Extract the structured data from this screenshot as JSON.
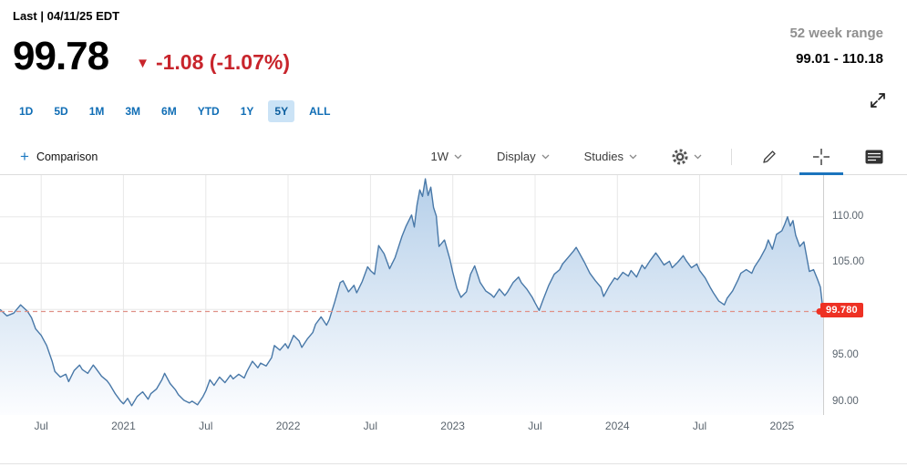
{
  "header": {
    "last_line": "Last | 04/11/25 EDT",
    "price": "99.78",
    "change_arrow": "▼",
    "change_text": "-1.08 (-1.07%)",
    "week_range_label": "52 week range",
    "week_range_value": "99.01 - 110.18"
  },
  "range_tabs": {
    "items": [
      "1D",
      "5D",
      "1M",
      "3M",
      "6M",
      "YTD",
      "1Y",
      "5Y",
      "ALL"
    ],
    "active": "5Y"
  },
  "toolbar": {
    "comparison": {
      "plus": "+",
      "label": "Comparison"
    },
    "dropdowns": [
      {
        "name": "interval",
        "label": "1W"
      },
      {
        "name": "display",
        "label": "Display"
      },
      {
        "name": "studies",
        "label": "Studies"
      }
    ],
    "tools": [
      "settings-gear",
      "draw-pencil",
      "crosshair",
      "events-news"
    ],
    "active_tool": "crosshair"
  },
  "colors": {
    "accent_blue": "#0f6db5",
    "active_tab_bg": "#cbe3f6",
    "change_red": "#c8252c",
    "badge": "#ee3124",
    "line": "#4878a8",
    "area_top": "#b5cfe9",
    "area_bottom": "#fcfdff",
    "dashed_line": "#e09187",
    "gridline": "#e8e8e8"
  },
  "chart_data": {
    "type": "area",
    "x_unit": "months from Apr 2020",
    "x_range": [
      0,
      60
    ],
    "ylim": [
      88.6,
      114.5
    ],
    "gridlines_y": [
      110,
      105,
      100,
      95,
      90
    ],
    "x_ticks": [
      {
        "t": 3,
        "label": "Jul"
      },
      {
        "t": 9,
        "label": "2021"
      },
      {
        "t": 15,
        "label": "Jul"
      },
      {
        "t": 21,
        "label": "2022"
      },
      {
        "t": 27,
        "label": "Jul"
      },
      {
        "t": 33,
        "label": "2023"
      },
      {
        "t": 39,
        "label": "Jul"
      },
      {
        "t": 45,
        "label": "2024"
      },
      {
        "t": 51,
        "label": "Jul"
      },
      {
        "t": 57,
        "label": "2025"
      }
    ],
    "y_ticks": [
      {
        "v": 110,
        "label": "110.00"
      },
      {
        "v": 105,
        "label": "105.00"
      },
      {
        "v": 95,
        "label": "95.00"
      },
      {
        "v": 90,
        "label": "90.00"
      }
    ],
    "current_price": 99.78,
    "current_price_label": "99.780",
    "legend": "none",
    "series": [
      {
        "name": "price",
        "points": [
          [
            0,
            100.0
          ],
          [
            0.5,
            99.3
          ],
          [
            1,
            99.6
          ],
          [
            1.5,
            100.5
          ],
          [
            2,
            99.8
          ],
          [
            2.3,
            99.1
          ],
          [
            2.6,
            97.9
          ],
          [
            3,
            97.2
          ],
          [
            3.4,
            96.1
          ],
          [
            3.8,
            94.4
          ],
          [
            4,
            93.3
          ],
          [
            4.4,
            92.7
          ],
          [
            4.8,
            93.0
          ],
          [
            5,
            92.2
          ],
          [
            5.4,
            93.4
          ],
          [
            5.8,
            94.0
          ],
          [
            6,
            93.5
          ],
          [
            6.4,
            93.1
          ],
          [
            6.8,
            94.0
          ],
          [
            7,
            93.6
          ],
          [
            7.4,
            92.8
          ],
          [
            7.8,
            92.3
          ],
          [
            8,
            91.9
          ],
          [
            8.4,
            90.9
          ],
          [
            8.8,
            90.1
          ],
          [
            9,
            89.8
          ],
          [
            9.3,
            90.4
          ],
          [
            9.6,
            89.6
          ],
          [
            10,
            90.6
          ],
          [
            10.4,
            91.1
          ],
          [
            10.8,
            90.3
          ],
          [
            11,
            90.9
          ],
          [
            11.4,
            91.4
          ],
          [
            11.8,
            92.4
          ],
          [
            12,
            93.1
          ],
          [
            12.4,
            92.0
          ],
          [
            12.8,
            91.3
          ],
          [
            13,
            90.8
          ],
          [
            13.4,
            90.2
          ],
          [
            13.8,
            89.9
          ],
          [
            14,
            90.1
          ],
          [
            14.4,
            89.7
          ],
          [
            14.8,
            90.6
          ],
          [
            15,
            91.2
          ],
          [
            15.3,
            92.4
          ],
          [
            15.6,
            91.8
          ],
          [
            16,
            92.7
          ],
          [
            16.4,
            92.1
          ],
          [
            16.8,
            92.9
          ],
          [
            17,
            92.5
          ],
          [
            17.4,
            93.0
          ],
          [
            17.8,
            92.6
          ],
          [
            18,
            93.3
          ],
          [
            18.4,
            94.4
          ],
          [
            18.8,
            93.7
          ],
          [
            19,
            94.2
          ],
          [
            19.4,
            93.9
          ],
          [
            19.8,
            94.8
          ],
          [
            20,
            96.1
          ],
          [
            20.4,
            95.6
          ],
          [
            20.8,
            96.3
          ],
          [
            21,
            95.8
          ],
          [
            21.4,
            97.2
          ],
          [
            21.8,
            96.6
          ],
          [
            22,
            95.9
          ],
          [
            22.4,
            96.8
          ],
          [
            22.8,
            97.5
          ],
          [
            23,
            98.4
          ],
          [
            23.4,
            99.2
          ],
          [
            23.8,
            98.3
          ],
          [
            24,
            98.9
          ],
          [
            24.4,
            100.8
          ],
          [
            24.8,
            102.9
          ],
          [
            25,
            103.1
          ],
          [
            25.4,
            101.9
          ],
          [
            25.8,
            102.6
          ],
          [
            26,
            101.8
          ],
          [
            26.4,
            103.0
          ],
          [
            26.8,
            104.6
          ],
          [
            27,
            104.2
          ],
          [
            27.3,
            103.8
          ],
          [
            27.6,
            106.9
          ],
          [
            28,
            106.0
          ],
          [
            28.4,
            104.4
          ],
          [
            28.8,
            105.6
          ],
          [
            29,
            106.5
          ],
          [
            29.3,
            107.9
          ],
          [
            29.6,
            109.0
          ],
          [
            30,
            110.2
          ],
          [
            30.2,
            108.9
          ],
          [
            30.4,
            111.3
          ],
          [
            30.6,
            112.9
          ],
          [
            30.8,
            112.2
          ],
          [
            31,
            114.1
          ],
          [
            31.2,
            112.3
          ],
          [
            31.4,
            113.2
          ],
          [
            31.6,
            111.0
          ],
          [
            31.8,
            110.1
          ],
          [
            32,
            106.8
          ],
          [
            32.4,
            107.5
          ],
          [
            32.8,
            105.4
          ],
          [
            33,
            104.0
          ],
          [
            33.3,
            102.3
          ],
          [
            33.6,
            101.3
          ],
          [
            34,
            101.9
          ],
          [
            34.3,
            103.8
          ],
          [
            34.6,
            104.7
          ],
          [
            35,
            102.9
          ],
          [
            35.4,
            102.0
          ],
          [
            35.8,
            101.6
          ],
          [
            36,
            101.3
          ],
          [
            36.4,
            102.2
          ],
          [
            36.8,
            101.5
          ],
          [
            37,
            101.9
          ],
          [
            37.4,
            102.9
          ],
          [
            37.8,
            103.5
          ],
          [
            38,
            102.9
          ],
          [
            38.4,
            102.2
          ],
          [
            38.8,
            101.3
          ],
          [
            39,
            100.7
          ],
          [
            39.3,
            99.9
          ],
          [
            39.6,
            101.1
          ],
          [
            40,
            102.6
          ],
          [
            40.4,
            103.8
          ],
          [
            40.8,
            104.3
          ],
          [
            41,
            104.9
          ],
          [
            41.4,
            105.6
          ],
          [
            41.8,
            106.3
          ],
          [
            42,
            106.7
          ],
          [
            42.3,
            105.9
          ],
          [
            42.6,
            105.1
          ],
          [
            43,
            103.9
          ],
          [
            43.4,
            103.1
          ],
          [
            43.8,
            102.4
          ],
          [
            44,
            101.4
          ],
          [
            44.4,
            102.5
          ],
          [
            44.8,
            103.4
          ],
          [
            45,
            103.2
          ],
          [
            45.4,
            104.0
          ],
          [
            45.8,
            103.6
          ],
          [
            46,
            104.2
          ],
          [
            46.4,
            103.5
          ],
          [
            46.8,
            104.8
          ],
          [
            47,
            104.4
          ],
          [
            47.4,
            105.3
          ],
          [
            47.8,
            106.1
          ],
          [
            48,
            105.7
          ],
          [
            48.4,
            104.8
          ],
          [
            48.8,
            105.2
          ],
          [
            49,
            104.5
          ],
          [
            49.4,
            105.1
          ],
          [
            49.8,
            105.8
          ],
          [
            50,
            105.3
          ],
          [
            50.4,
            104.5
          ],
          [
            50.8,
            104.9
          ],
          [
            51,
            104.2
          ],
          [
            51.4,
            103.4
          ],
          [
            51.8,
            102.3
          ],
          [
            52,
            101.8
          ],
          [
            52.4,
            100.9
          ],
          [
            52.8,
            100.5
          ],
          [
            53,
            101.2
          ],
          [
            53.4,
            102.0
          ],
          [
            53.8,
            103.2
          ],
          [
            54,
            103.9
          ],
          [
            54.4,
            104.3
          ],
          [
            54.8,
            103.9
          ],
          [
            55,
            104.6
          ],
          [
            55.4,
            105.5
          ],
          [
            55.8,
            106.6
          ],
          [
            56,
            107.5
          ],
          [
            56.3,
            106.5
          ],
          [
            56.6,
            108.1
          ],
          [
            57,
            108.5
          ],
          [
            57.2,
            109.2
          ],
          [
            57.4,
            110.0
          ],
          [
            57.6,
            109.0
          ],
          [
            57.8,
            109.6
          ],
          [
            58,
            108.0
          ],
          [
            58.3,
            106.8
          ],
          [
            58.6,
            107.3
          ],
          [
            59,
            104.1
          ],
          [
            59.3,
            104.3
          ],
          [
            59.6,
            103.2
          ],
          [
            59.8,
            102.4
          ],
          [
            60,
            99.78
          ]
        ]
      }
    ]
  }
}
